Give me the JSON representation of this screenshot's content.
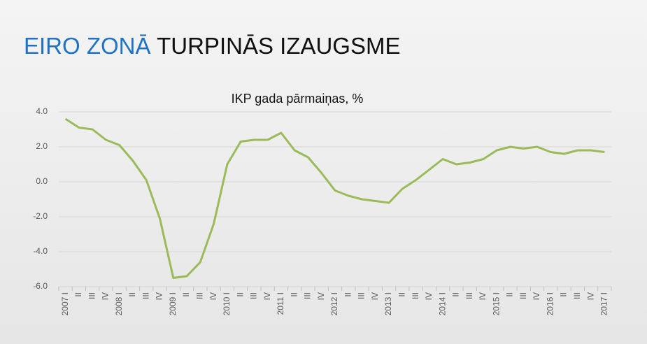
{
  "slide_title": {
    "highlight": "EIRO ZONĀ",
    "rest": "TURPINĀS IZAUGSME"
  },
  "chart_data": {
    "type": "line",
    "title": "IKP gada pārmaiņas, %",
    "categories": [
      "2007 I",
      "II",
      "III",
      "IV",
      "2008 I",
      "II",
      "III",
      "IV",
      "2009 I",
      "II",
      "III",
      "IV",
      "2010 I",
      "II",
      "III",
      "IV",
      "2011 I",
      "II",
      "III",
      "IV",
      "2012 I",
      "II",
      "III",
      "IV",
      "2013 I",
      "II",
      "III",
      "IV",
      "2014 I",
      "II",
      "III",
      "IV",
      "2015 I",
      "II",
      "III",
      "IV",
      "2016 I",
      "II",
      "III",
      "IV",
      "2017 I"
    ],
    "values": [
      3.6,
      3.1,
      3.0,
      2.4,
      2.1,
      1.2,
      0.1,
      -2.1,
      -5.5,
      -5.4,
      -4.6,
      -2.4,
      1.0,
      2.3,
      2.4,
      2.4,
      2.8,
      1.8,
      1.4,
      0.5,
      -0.5,
      -0.8,
      -1.0,
      -1.1,
      -1.2,
      -0.4,
      0.1,
      0.7,
      1.3,
      1.0,
      1.1,
      1.3,
      1.8,
      2.0,
      1.9,
      2.0,
      1.7,
      1.6,
      1.8,
      1.8,
      1.7
    ],
    "color": "#9bbb59",
    "ylim": [
      -6,
      4
    ],
    "yticks": [
      {
        "value": 4,
        "label": "4.0"
      },
      {
        "value": 2,
        "label": "2.0"
      },
      {
        "value": 0,
        "label": "0.0"
      },
      {
        "value": -2,
        "label": "-2.0"
      },
      {
        "value": -4,
        "label": "-4.0"
      },
      {
        "value": -6,
        "label": "-6.0"
      }
    ],
    "grid": true
  }
}
